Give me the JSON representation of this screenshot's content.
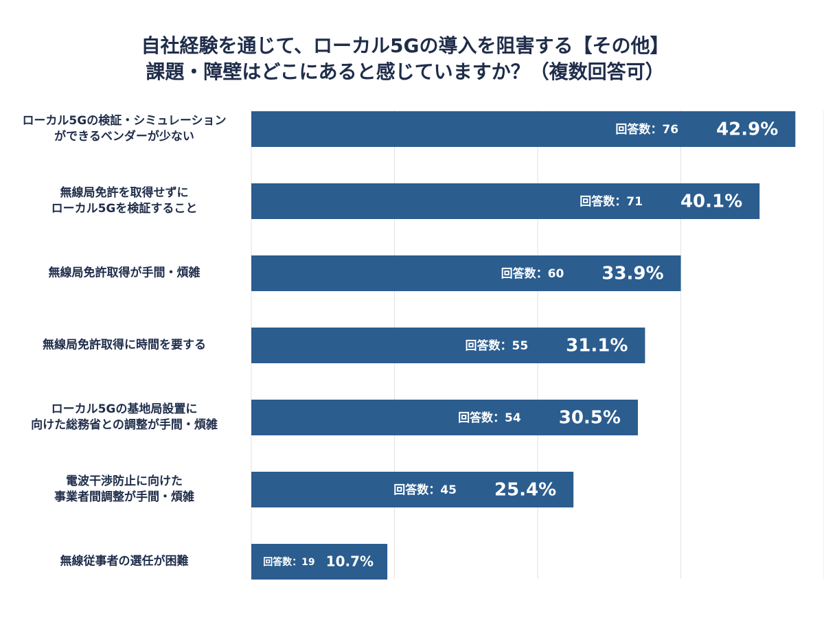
{
  "chart_data": {
    "type": "hbar",
    "title": "自社経験を通じて、ローカル5Gの導入を阻害する【その他】\n課題・障壁はどこにあると感じていますか？（複数回答可）",
    "categories": [
      "ローカル5Gの検証・シミュレーション\nができるベンダーが少ない",
      "無線局免許を取得せずに\nローカル5Gを検証すること",
      "無線局免許取得が手間・煩雑",
      "無線局免許取得に時間を要する",
      "ローカル5Gの基地局設置に\n向けた総務省との調整が手間・煩雑",
      "電波干渉防止に向けた\n事業者間調整が手間・煩雑",
      "無線従事者の選任が困難"
    ],
    "values": [
      76,
      71,
      60,
      55,
      54,
      45,
      19
    ],
    "value_labels": [
      "回答数：76",
      "回答数：71",
      "回答数：60",
      "回答数：55",
      "回答数：54",
      "回答数：45",
      "回答数：19"
    ],
    "percent_labels": [
      "42.9%",
      "40.1%",
      "33.9%",
      "31.1%",
      "30.5%",
      "25.4%",
      "10.7%"
    ],
    "color": "#2b5d8f",
    "xlim": [
      0,
      80
    ],
    "xticks": [
      0,
      20,
      40,
      60,
      80
    ],
    "grid": true
  }
}
